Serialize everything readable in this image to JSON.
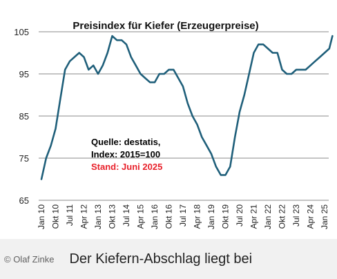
{
  "chart_data": {
    "type": "line",
    "title": "Preisindex für Kiefer (Erzeugerpreise)",
    "xlabel": "",
    "ylabel": "",
    "ylim": [
      65,
      105
    ],
    "yticks": [
      105,
      95,
      85,
      75,
      65
    ],
    "grid": "horizontal",
    "line_color": "#1f5f7a",
    "xticks": [
      "Jan 10",
      "Okt 10",
      "Jul 11",
      "Apr 12",
      "Jan 13",
      "Okt 13",
      "Jul 14",
      "Apr 15",
      "Jan 16",
      "Okt 16",
      "Jul 17",
      "Apr 18",
      "Jan 19",
      "Okt 19",
      "Jul 20",
      "Apr 21",
      "Jan 22",
      "Okt 22",
      "Jul 23",
      "Apr 24",
      "Jan 25"
    ],
    "annotations": [
      {
        "text": "Quelle: destatis,",
        "color": "#000000"
      },
      {
        "text": "Index: 2015=100",
        "color": "#000000"
      },
      {
        "text": "Stand: Juni 2025",
        "color": "#e8202a"
      }
    ],
    "series": [
      {
        "x": [
          "Jan 10",
          "Apr 10",
          "Jul 10",
          "Okt 10",
          "Jan 11",
          "Apr 11",
          "Jul 11",
          "Okt 11",
          "Jan 12",
          "Apr 12",
          "Jul 12",
          "Okt 12",
          "Jan 13",
          "Apr 13",
          "Jul 13",
          "Okt 13",
          "Jan 14",
          "Apr 14",
          "Jul 14",
          "Okt 14",
          "Jan 15",
          "Apr 15",
          "Jul 15",
          "Okt 15",
          "Jan 16",
          "Apr 16",
          "Jul 16",
          "Okt 16",
          "Jan 17",
          "Apr 17",
          "Jul 17",
          "Okt 17",
          "Jan 18",
          "Apr 18",
          "Jul 18",
          "Okt 18",
          "Jan 19",
          "Apr 19",
          "Jul 19",
          "Okt 19",
          "Jan 20",
          "Apr 20",
          "Jul 20",
          "Okt 20",
          "Jan 21",
          "Apr 21",
          "Jul 21",
          "Okt 21",
          "Jan 22",
          "Apr 22",
          "Jul 22",
          "Okt 22",
          "Jan 23",
          "Apr 23",
          "Jul 23",
          "Okt 23",
          "Jan 24",
          "Apr 24",
          "Jul 24",
          "Okt 24",
          "Jan 25",
          "Apr 25",
          "Jun 25"
        ],
        "values": [
          70,
          75,
          78,
          82,
          89,
          96,
          98,
          99,
          100,
          99,
          96,
          97,
          95,
          97,
          100,
          104,
          103,
          103,
          102,
          99,
          97,
          95,
          94,
          93,
          93,
          95,
          95,
          96,
          96,
          94,
          92,
          88,
          85,
          83,
          80,
          78,
          76,
          73,
          71,
          71,
          73,
          80,
          86,
          90,
          95,
          100,
          102,
          102,
          101,
          100,
          100,
          96,
          95,
          95,
          96,
          96,
          96,
          97,
          98,
          99,
          100,
          101,
          104
        ]
      }
    ]
  },
  "caption": {
    "credit": "© Olaf Zinke",
    "text": "Der Kiefern-Abschlag liegt bei"
  }
}
